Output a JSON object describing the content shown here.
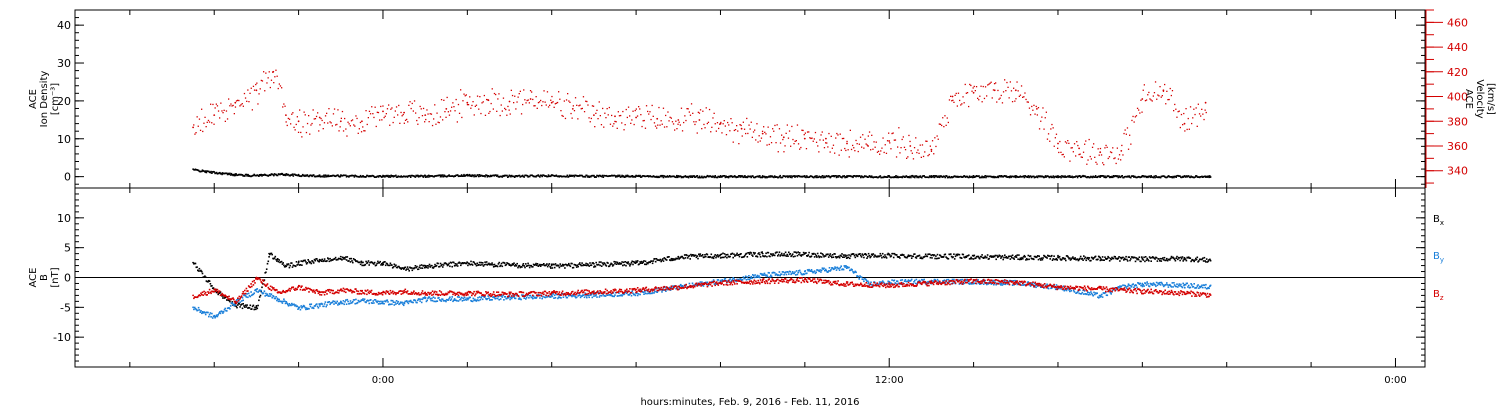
{
  "chart_data": [
    {
      "type": "scatter",
      "panel": "top",
      "ylabel": [
        "ACE",
        "Ion Density",
        "[cm⁻³]"
      ],
      "ylabel_right": [
        "ACE",
        "Velocity",
        "[km/s]"
      ],
      "ylim": [
        -3,
        44
      ],
      "y_ticks": [
        0,
        10,
        20,
        30,
        40
      ],
      "ylim_right": [
        326,
        470
      ],
      "y_ticks_right": [
        340,
        360,
        380,
        400,
        420,
        440,
        460
      ],
      "y_right_color": "#d40000",
      "series": [
        {
          "label": "Ion Density",
          "color": "#000000",
          "axis": "left",
          "x": [
            -4.5,
            -4.2,
            -3.8,
            -3.5,
            -3.2,
            -2.8,
            -2.4,
            -2.0,
            -1.5,
            -1.0,
            0.0,
            1.0,
            2.0,
            3.0,
            4.0,
            5.0,
            6.0,
            7.0,
            8.0,
            9.0,
            10.0,
            11.0,
            12.0,
            13.0,
            14.0,
            15.0,
            16.0,
            17.0,
            18.0,
            19.0,
            19.6
          ],
          "y": [
            2.0,
            1.5,
            1.0,
            0.7,
            0.5,
            0.6,
            0.8,
            0.5,
            0.4,
            0.4,
            0.3,
            0.3,
            0.5,
            0.3,
            0.4,
            0.3,
            0.3,
            0.2,
            0.2,
            0.2,
            0.2,
            0.2,
            0.2,
            0.2,
            0.2,
            0.2,
            0.2,
            0.2,
            0.2,
            0.2,
            0.2
          ]
        },
        {
          "label": "Velocity",
          "color": "#d40000",
          "axis": "right",
          "x": [
            -4.5,
            -4.0,
            -3.5,
            -3.0,
            -2.6,
            -2.3,
            -2.0,
            -1.5,
            -1.0,
            -0.5,
            0.0,
            0.5,
            1.0,
            1.5,
            2.0,
            2.5,
            3.0,
            3.5,
            4.0,
            4.5,
            5.0,
            5.5,
            6.0,
            6.5,
            7.0,
            7.5,
            8.0,
            8.5,
            9.0,
            9.5,
            10.0,
            10.5,
            11.0,
            11.5,
            12.0,
            12.5,
            13.0,
            13.5,
            14.0,
            14.5,
            15.0,
            15.5,
            16.0,
            16.5,
            17.0,
            17.5,
            18.0,
            18.5,
            19.0,
            19.5
          ],
          "y": [
            375,
            385,
            395,
            405,
            420,
            385,
            380,
            383,
            380,
            380,
            388,
            387,
            385,
            390,
            395,
            397,
            396,
            398,
            395,
            390,
            385,
            384,
            383,
            382,
            381,
            381,
            378,
            374,
            370,
            367,
            366,
            366,
            362,
            360,
            364,
            360,
            357,
            400,
            403,
            405,
            405,
            390,
            362,
            358,
            355,
            356,
            398,
            405,
            378,
            395
          ]
        }
      ]
    },
    {
      "type": "scatter",
      "panel": "bottom",
      "ylabel": [
        "ACE",
        "B",
        "[nT]"
      ],
      "ylim": [
        -15,
        15
      ],
      "y_ticks": [
        -10,
        -5,
        0,
        5,
        10
      ],
      "zero_line": true,
      "series": [
        {
          "label": "Bx",
          "color": "#000000",
          "x": [
            -4.5,
            -4.0,
            -3.5,
            -3.0,
            -2.7,
            -2.5,
            -2.3,
            -2.0,
            -1.5,
            -1.0,
            -0.5,
            0.0,
            0.5,
            1.0,
            2.0,
            3.0,
            4.0,
            5.0,
            6.0,
            7.0,
            8.0,
            9.0,
            10.0,
            11.0,
            12.0,
            13.0,
            14.0,
            15.0,
            16.0,
            17.0,
            18.0,
            19.0,
            19.6
          ],
          "y": [
            2.5,
            -2.0,
            -4.5,
            -5.0,
            4.0,
            3.0,
            2.0,
            2.5,
            3.0,
            3.5,
            2.5,
            2.5,
            1.5,
            2.0,
            2.5,
            2.2,
            2.0,
            2.3,
            2.5,
            3.5,
            3.8,
            4.0,
            4.0,
            3.7,
            3.8,
            3.7,
            3.6,
            3.5,
            3.4,
            3.3,
            3.2,
            3.3,
            3.0
          ]
        },
        {
          "label": "By",
          "color": "#1a7fd9",
          "x": [
            -4.5,
            -4.0,
            -3.5,
            -3.0,
            -2.5,
            -2.0,
            -1.5,
            -1.0,
            -0.5,
            0.0,
            0.5,
            1.0,
            2.0,
            3.0,
            4.0,
            5.0,
            6.0,
            7.0,
            8.0,
            9.0,
            10.0,
            11.0,
            11.5,
            12.0,
            13.0,
            14.0,
            15.0,
            16.0,
            17.0,
            17.5,
            18.0,
            19.0,
            19.6
          ],
          "y": [
            -5.0,
            -6.5,
            -4.0,
            -2.0,
            -3.5,
            -5.0,
            -4.5,
            -4.0,
            -3.8,
            -4.0,
            -4.2,
            -3.5,
            -3.5,
            -3.2,
            -3.0,
            -2.8,
            -2.5,
            -1.5,
            -0.5,
            0.5,
            1.0,
            1.8,
            -1.0,
            -0.7,
            -0.5,
            -0.6,
            -0.8,
            -1.5,
            -3.0,
            -1.5,
            -1.0,
            -1.2,
            -1.5
          ]
        },
        {
          "label": "Bz",
          "color": "#d40000",
          "x": [
            -4.5,
            -4.0,
            -3.5,
            -3.0,
            -2.5,
            -2.0,
            -1.5,
            -1.0,
            -0.5,
            0.0,
            0.5,
            1.0,
            2.0,
            3.0,
            4.0,
            5.0,
            6.0,
            7.0,
            8.0,
            9.0,
            10.0,
            11.0,
            12.0,
            13.0,
            14.0,
            15.0,
            16.0,
            17.0,
            18.0,
            19.0,
            19.6
          ],
          "y": [
            -3.0,
            -2.0,
            -4.0,
            0.0,
            -2.5,
            -1.5,
            -2.5,
            -2.0,
            -2.3,
            -2.5,
            -2.2,
            -2.5,
            -2.5,
            -2.7,
            -2.5,
            -2.3,
            -2.0,
            -1.5,
            -0.8,
            -0.5,
            -0.3,
            -1.0,
            -1.2,
            -0.8,
            -0.5,
            -0.7,
            -1.5,
            -1.8,
            -2.2,
            -2.5,
            -2.8
          ]
        }
      ]
    }
  ],
  "x_axis": {
    "range": [
      -7.3,
      24.7
    ],
    "labeled_ticks": [
      {
        "x": 0,
        "label": "0:00"
      },
      {
        "x": 12,
        "label": "12:00"
      },
      {
        "x": 24,
        "label": "0:00"
      }
    ],
    "major_tick_step": 2,
    "xlabel": "hours:minutes, Feb.  9, 2016 - Feb. 11, 2016"
  },
  "legend": [
    {
      "base": "B",
      "sub": "x",
      "color": "#000000"
    },
    {
      "base": "B",
      "sub": "y",
      "color": "#1a7fd9"
    },
    {
      "base": "B",
      "sub": "z",
      "color": "#d40000"
    }
  ]
}
